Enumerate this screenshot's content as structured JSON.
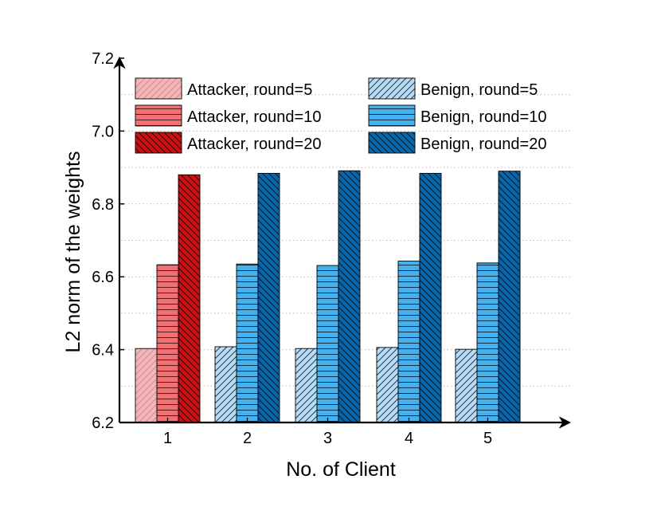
{
  "chart_data": {
    "type": "bar",
    "xlabel": "No. of Client",
    "ylabel": "L2 norm of the weights",
    "ylim": [
      6.2,
      7.2
    ],
    "yticks": [
      "6.2",
      "6.4",
      "6.6",
      "6.8",
      "7.0",
      "7.2"
    ],
    "categories": [
      "1",
      "2",
      "3",
      "4",
      "5"
    ],
    "grid": "horizontal-dotted",
    "legend_placement": "top, two columns",
    "series": [
      {
        "group": "round=5",
        "values": [
          6.403,
          6.408,
          6.403,
          6.406,
          6.401
        ]
      },
      {
        "group": "round=10",
        "values": [
          6.633,
          6.635,
          6.631,
          6.643,
          6.638
        ]
      },
      {
        "group": "round=20",
        "values": [
          6.88,
          6.884,
          6.891,
          6.884,
          6.89
        ]
      }
    ],
    "bar_roles": [
      "attacker",
      "benign",
      "benign",
      "benign",
      "benign"
    ],
    "legend": [
      {
        "label": "Attacker, round=5",
        "style": "attacker-5"
      },
      {
        "label": "Attacker, round=10",
        "style": "attacker-10"
      },
      {
        "label": "Attacker, round=20",
        "style": "attacker-20"
      },
      {
        "label": "Benign, round=5",
        "style": "benign-5"
      },
      {
        "label": "Benign, round=10",
        "style": "benign-10"
      },
      {
        "label": "Benign, round=20",
        "style": "benign-20"
      }
    ],
    "colors": {
      "attacker-5": "#f4b6b8",
      "attacker-10": "#f07074",
      "attacker-20": "#cc0f11",
      "benign-5": "#b9dcf4",
      "benign-10": "#45b1ee",
      "benign-20": "#0767ac"
    }
  }
}
